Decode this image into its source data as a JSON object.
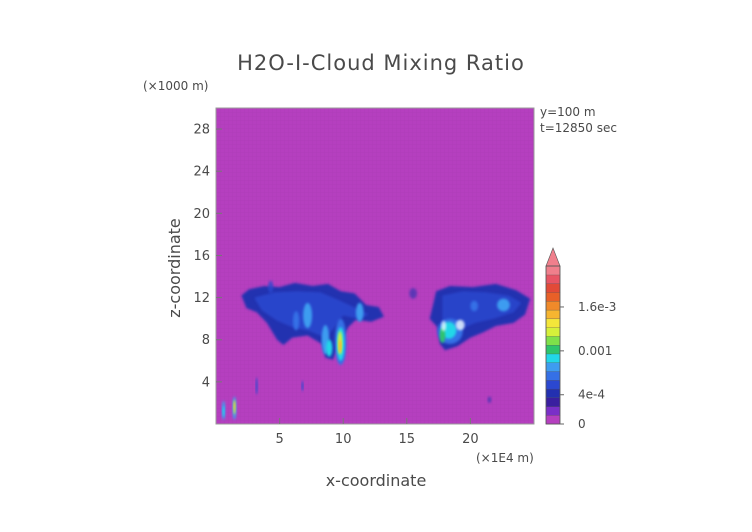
{
  "chart_data": {
    "type": "heatmap",
    "title": "H2O-I-Cloud Mixing Ratio",
    "xlabel": "x-coordinate",
    "ylabel": "z-coordinate",
    "x_unit": "(×1E4 m)",
    "y_unit": "(×1000 m)",
    "annotations": [
      "y=100 m",
      "t=12850 sec"
    ],
    "xlim": [
      0,
      25
    ],
    "ylim": [
      0,
      30
    ],
    "x_ticks": [
      5,
      10,
      15,
      20
    ],
    "y_ticks": [
      4,
      8,
      12,
      16,
      20,
      24,
      28
    ],
    "colorbar": {
      "tick_labels": [
        "0",
        "4e-4",
        "0.001",
        "1.6e-3"
      ],
      "tick_values": [
        0,
        0.0004,
        0.001,
        0.0016
      ],
      "extend": "max",
      "levels": 18,
      "colors": [
        "#b53fbf",
        "#7a2fc8",
        "#3a1fa0",
        "#2330b0",
        "#2b48d0",
        "#3570e6",
        "#3e9cf0",
        "#22d7e8",
        "#2ec46c",
        "#7fe04a",
        "#d6f03a",
        "#f4e63a",
        "#f6b530",
        "#f08a2a",
        "#e86028",
        "#e24a38",
        "#e85565",
        "#f07f8c"
      ]
    },
    "background_color": "#b53fbf",
    "regions": [
      {
        "name": "main cloud deck west",
        "x": [
          2.0,
          13.2
        ],
        "z": [
          7.5,
          13.4
        ],
        "level": "low (~1e-4)"
      },
      {
        "name": "main cloud deck east",
        "x": [
          17.2,
          24.7
        ],
        "z": [
          7.5,
          13.3
        ],
        "level": "low (~1e-4)"
      },
      {
        "name": "embedded core",
        "x": [
          9.5,
          10.1
        ],
        "z": [
          6.5,
          9.0
        ],
        "level": "peak (~1.2e-3)"
      },
      {
        "name": "embedded core",
        "x": [
          17.3,
          19.5
        ],
        "z": [
          7.0,
          9.7
        ],
        "level": "~6e-4"
      },
      {
        "name": "surface patch",
        "x": [
          0.4,
          0.8
        ],
        "z": [
          0.6,
          2.2
        ],
        "level": "~5e-4"
      },
      {
        "name": "surface patch",
        "x": [
          1.3,
          1.6
        ],
        "z": [
          0.4,
          2.5
        ],
        "level": "~1.2e-3"
      }
    ]
  }
}
